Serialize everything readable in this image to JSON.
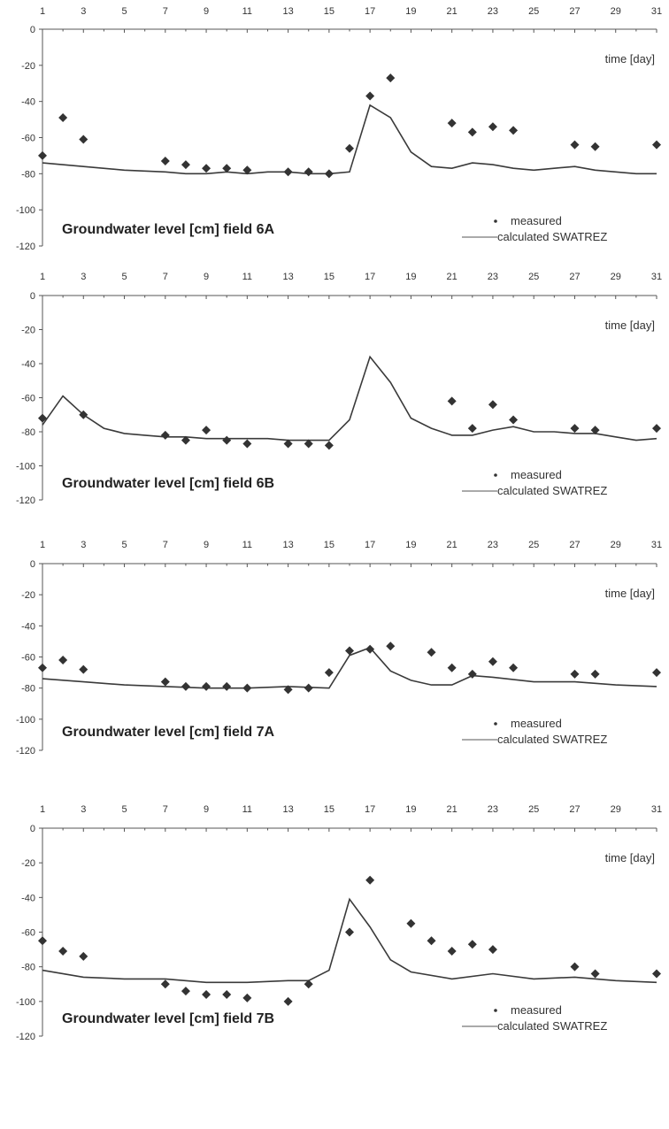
{
  "chart_data": [
    {
      "type": "line",
      "title": "Groundwater level [cm] field 6A",
      "xlabel": "time  [day]",
      "ylabel": "",
      "xlim": [
        1,
        31
      ],
      "ylim": [
        -120,
        0
      ],
      "x_ticks": [
        "1",
        "3",
        "5",
        "7",
        "9",
        "11",
        "13",
        "15",
        "17",
        "19",
        "21",
        "23",
        "25",
        "27",
        "29",
        "31"
      ],
      "y_ticks": [
        "0",
        "-20",
        "-40",
        "-60",
        "-80",
        "-100",
        "-120"
      ],
      "legend": [
        "measured",
        "calculated SWATREZ"
      ],
      "series": [
        {
          "name": "measured",
          "style": "markers",
          "x": [
            1,
            2,
            3,
            7,
            8,
            9,
            10,
            11,
            13,
            14,
            15,
            16,
            17,
            18,
            21,
            22,
            23,
            24,
            27,
            28,
            31
          ],
          "y": [
            -70,
            -49,
            -61,
            -73,
            -75,
            -77,
            -77,
            -78,
            -79,
            -79,
            -80,
            -66,
            -37,
            -27,
            -52,
            -57,
            -54,
            -56,
            -64,
            -65,
            -64
          ]
        },
        {
          "name": "calculated SWATREZ",
          "style": "line",
          "x": [
            1,
            3,
            5,
            7,
            8,
            9,
            10,
            11,
            12,
            13,
            14,
            15,
            16,
            17,
            18,
            19,
            20,
            21,
            22,
            23,
            24,
            25,
            26,
            27,
            28,
            29,
            30,
            31
          ],
          "y": [
            -74,
            -76,
            -78,
            -79,
            -80,
            -80,
            -79,
            -80,
            -79,
            -79,
            -80,
            -80,
            -79,
            -42,
            -49,
            -68,
            -76,
            -77,
            -74,
            -75,
            -77,
            -78,
            -77,
            -76,
            -78,
            -79,
            -80,
            -80
          ]
        }
      ]
    },
    {
      "type": "line",
      "title": "Groundwater level [cm] field 6B",
      "xlabel": "time  [day]",
      "ylabel": "",
      "xlim": [
        1,
        31
      ],
      "ylim": [
        -120,
        0
      ],
      "x_ticks": [
        "1",
        "3",
        "5",
        "7",
        "9",
        "11",
        "13",
        "15",
        "17",
        "19",
        "21",
        "23",
        "25",
        "27",
        "29",
        "31"
      ],
      "y_ticks": [
        "0",
        "-20",
        "-40",
        "-60",
        "-80",
        "-100",
        "-120"
      ],
      "legend": [
        "measured",
        "calculated SWATREZ"
      ],
      "series": [
        {
          "name": "measured",
          "style": "markers",
          "x": [
            1,
            3,
            7,
            8,
            9,
            10,
            11,
            13,
            14,
            15,
            21,
            22,
            23,
            24,
            27,
            28,
            31
          ],
          "y": [
            -72,
            -70,
            -82,
            -85,
            -79,
            -85,
            -87,
            -87,
            -87,
            -88,
            -62,
            -78,
            -64,
            -73,
            -78,
            -79,
            -78
          ]
        },
        {
          "name": "calculated SWATREZ",
          "style": "line",
          "x": [
            1,
            2,
            3,
            4,
            5,
            6,
            7,
            8,
            9,
            10,
            11,
            12,
            13,
            14,
            15,
            16,
            17,
            18,
            19,
            20,
            21,
            22,
            23,
            24,
            25,
            26,
            27,
            28,
            29,
            30,
            31
          ],
          "y": [
            -76,
            -59,
            -70,
            -78,
            -81,
            -82,
            -83,
            -83,
            -84,
            -84,
            -84,
            -84,
            -85,
            -85,
            -85,
            -73,
            -36,
            -51,
            -72,
            -78,
            -82,
            -82,
            -79,
            -77,
            -80,
            -80,
            -81,
            -81,
            -83,
            -85,
            -84
          ]
        }
      ]
    },
    {
      "type": "line",
      "title": "Groundwater level [cm] field 7A",
      "xlabel": "time  [day]",
      "ylabel": "",
      "xlim": [
        1,
        31
      ],
      "ylim": [
        -120,
        0
      ],
      "x_ticks": [
        "1",
        "3",
        "5",
        "7",
        "9",
        "11",
        "13",
        "15",
        "17",
        "19",
        "21",
        "23",
        "25",
        "27",
        "29",
        "31"
      ],
      "y_ticks": [
        "0",
        "-20",
        "-40",
        "-60",
        "-80",
        "-100",
        "-120"
      ],
      "legend": [
        "measured",
        "calculated SWATREZ"
      ],
      "series": [
        {
          "name": "measured",
          "style": "markers",
          "x": [
            1,
            2,
            3,
            7,
            8,
            9,
            10,
            11,
            13,
            14,
            15,
            16,
            17,
            18,
            20,
            21,
            22,
            23,
            24,
            27,
            28,
            31
          ],
          "y": [
            -67,
            -62,
            -68,
            -76,
            -79,
            -79,
            -79,
            -80,
            -81,
            -80,
            -70,
            -56,
            -55,
            -53,
            -57,
            -67,
            -71,
            -63,
            -67,
            -71,
            -71,
            -70
          ]
        },
        {
          "name": "calculated SWATREZ",
          "style": "line",
          "x": [
            1,
            3,
            5,
            7,
            9,
            11,
            13,
            15,
            16,
            17,
            18,
            19,
            20,
            21,
            22,
            23,
            25,
            27,
            29,
            31
          ],
          "y": [
            -74,
            -76,
            -78,
            -79,
            -80,
            -80,
            -79,
            -80,
            -59,
            -54,
            -69,
            -75,
            -78,
            -78,
            -72,
            -73,
            -76,
            -76,
            -78,
            -79
          ]
        }
      ]
    },
    {
      "type": "line",
      "title": "Groundwater level [cm] field 7B",
      "xlabel": "time  [day]",
      "ylabel": "",
      "xlim": [
        1,
        31
      ],
      "ylim": [
        -120,
        0
      ],
      "x_ticks": [
        "1",
        "3",
        "5",
        "7",
        "9",
        "11",
        "13",
        "15",
        "17",
        "19",
        "21",
        "23",
        "25",
        "27",
        "29",
        "31"
      ],
      "y_ticks": [
        "0",
        "-20",
        "-40",
        "-60",
        "-80",
        "-100",
        "-120"
      ],
      "legend": [
        "measured",
        "calculated SWATREZ"
      ],
      "series": [
        {
          "name": "measured",
          "style": "markers",
          "x": [
            1,
            2,
            3,
            7,
            8,
            9,
            10,
            11,
            13,
            14,
            16,
            17,
            19,
            20,
            21,
            22,
            23,
            27,
            28,
            31
          ],
          "y": [
            -65,
            -71,
            -74,
            -90,
            -94,
            -96,
            -96,
            -98,
            -100,
            -90,
            -60,
            -30,
            -55,
            -65,
            -71,
            -67,
            -70,
            -80,
            -84,
            -84
          ]
        },
        {
          "name": "calculated SWATREZ",
          "style": "line",
          "x": [
            1,
            3,
            5,
            7,
            9,
            11,
            13,
            14,
            15,
            16,
            17,
            18,
            19,
            21,
            23,
            25,
            27,
            29,
            31
          ],
          "y": [
            -82,
            -86,
            -87,
            -87,
            -89,
            -89,
            -88,
            -88,
            -82,
            -41,
            -57,
            -76,
            -83,
            -87,
            -84,
            -87,
            -86,
            -88,
            -89
          ]
        }
      ]
    }
  ]
}
